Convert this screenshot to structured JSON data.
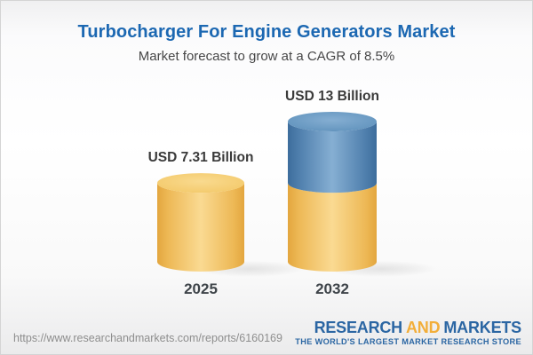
{
  "header": {
    "title": "Turbocharger For Engine Generators Market",
    "subtitle": "Market forecast to grow at a CAGR of 8.5%"
  },
  "chart_data": {
    "type": "bar",
    "variant": "3d-cylinder",
    "title": "Turbocharger For Engine Generators Market",
    "subtitle": "Market forecast to grow at a CAGR of 8.5%",
    "categories": [
      "2025",
      "2032"
    ],
    "values": [
      7.31,
      13
    ],
    "value_labels": [
      "USD 7.31 Billion",
      "USD 13 Billion"
    ],
    "unit": "USD Billion",
    "cagr_pct": 8.5,
    "ylim": [
      0,
      13
    ],
    "legend": "none",
    "grid": "off",
    "colors": {
      "base_segment": "#F2C766",
      "growth_segment": "#5D8CB6",
      "value_label_text": "#3A3A3A",
      "title_text": "#1C68B2"
    }
  },
  "footer": {
    "url": "https://www.researchandmarkets.com/reports/6160169",
    "logo": {
      "word1": "RESEARCH",
      "word2": "AND",
      "word3": "MARKETS",
      "tagline": "THE WORLD'S LARGEST MARKET RESEARCH STORE",
      "blue": "#2B66A3",
      "orange": "#F2AE3A"
    }
  }
}
